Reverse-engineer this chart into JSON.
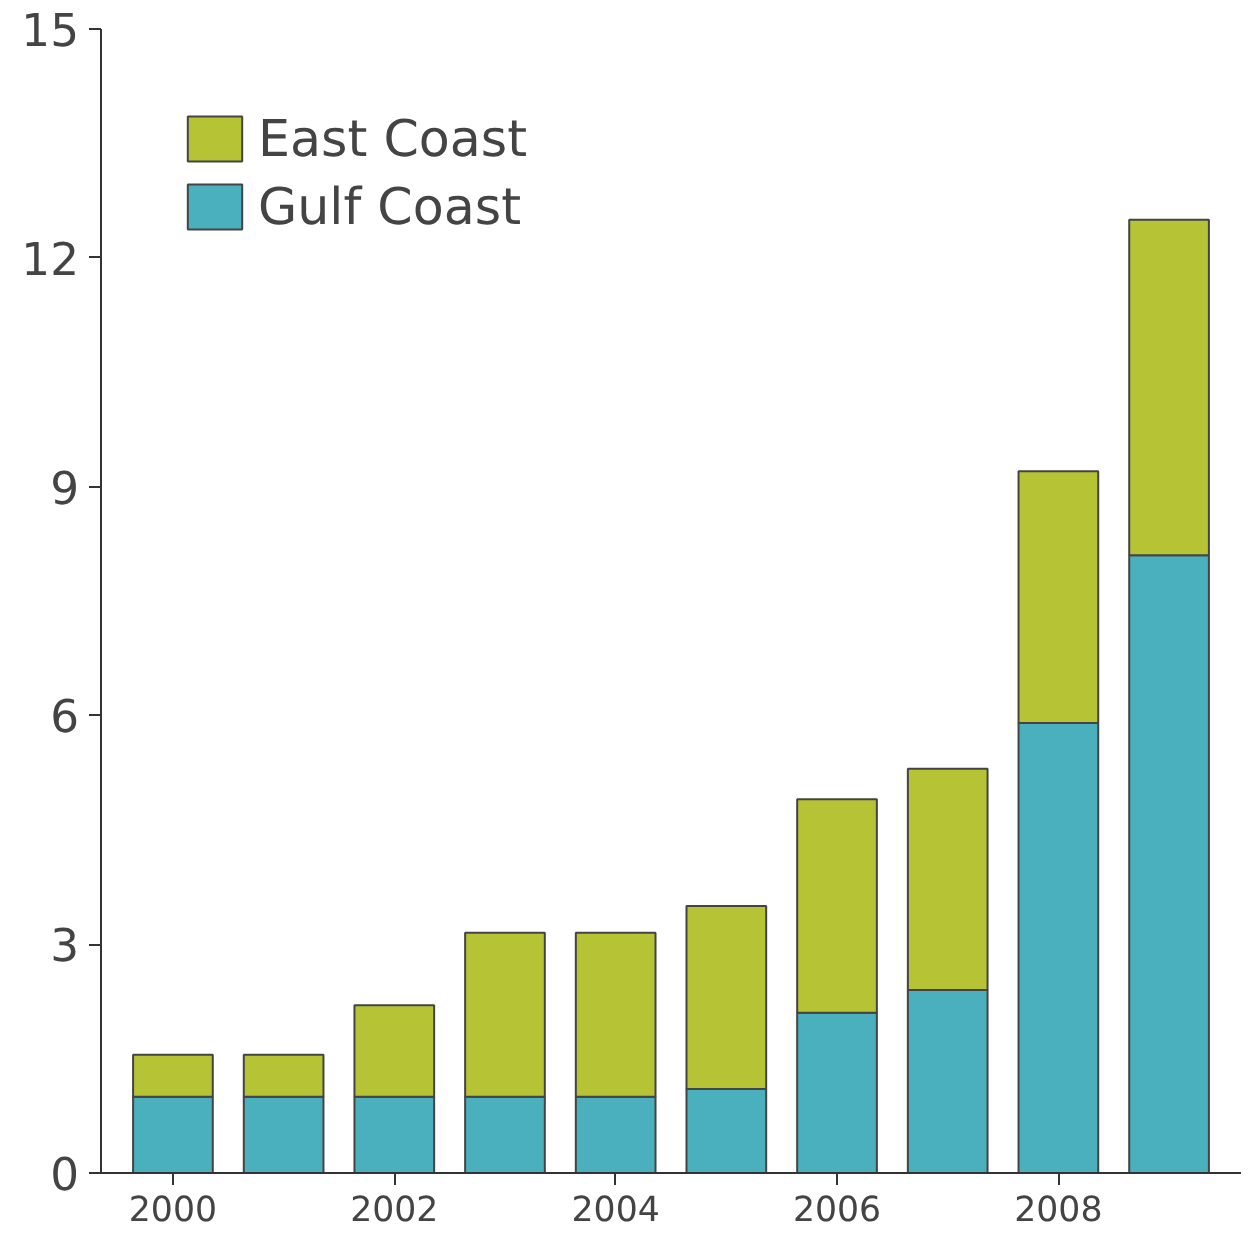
{
  "chart_data": {
    "type": "bar",
    "stacked": true,
    "x": [
      2000,
      2001,
      2002,
      2003,
      2004,
      2005,
      2006,
      2007,
      2008,
      2009
    ],
    "series": [
      {
        "name": "Gulf Coast",
        "color": "#4ab0bd",
        "values": [
          1.0,
          1.0,
          1.0,
          1.0,
          1.0,
          1.1,
          2.1,
          2.4,
          5.9,
          8.1
        ]
      },
      {
        "name": "East Coast",
        "color": "#b5c334",
        "values": [
          0.55,
          0.55,
          1.2,
          2.15,
          2.15,
          2.4,
          2.8,
          2.9,
          3.3,
          4.4
        ]
      }
    ],
    "xlim": [
      1999.35,
      2009.65
    ],
    "xticks": [
      2000,
      2002,
      2004,
      2006,
      2008
    ],
    "ylim": [
      0,
      15
    ],
    "yticks": [
      0,
      3,
      6,
      9,
      12,
      15
    ],
    "grid": false,
    "legend": "top left"
  }
}
